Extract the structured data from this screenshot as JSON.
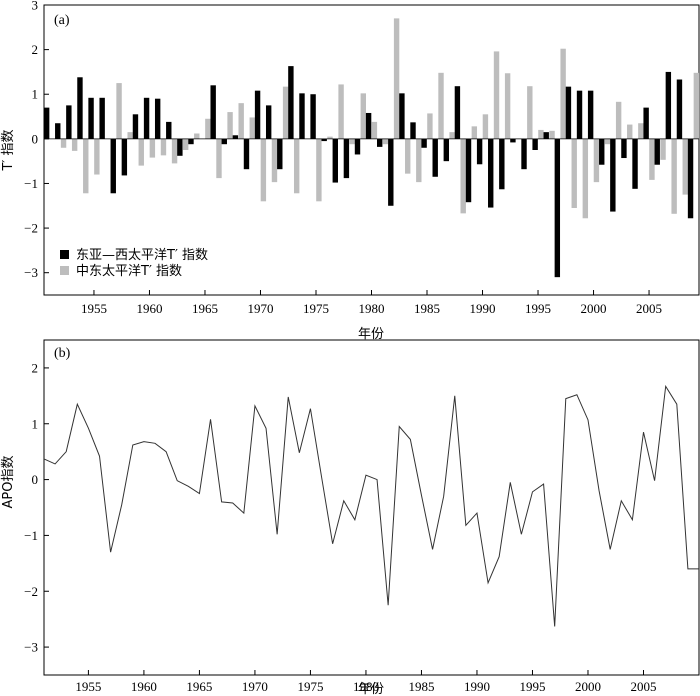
{
  "chart_data": [
    {
      "panel": "(a)",
      "type": "bar",
      "xlabel": "年份",
      "ylabel": "T′ 指数",
      "ylim": [
        -3.5,
        3
      ],
      "yticks": [
        -3,
        -2,
        -1,
        0,
        1,
        2,
        3
      ],
      "xticks": [
        1955,
        1960,
        1965,
        1970,
        1975,
        1980,
        1985,
        1990,
        1995,
        2000,
        2005
      ],
      "xlim": [
        1950.5,
        2009.5
      ],
      "legend_position": "bottom-left",
      "colors": {
        "ea_wp": "#000000",
        "cep": "#bdbdbd"
      },
      "x": [
        1951,
        1952,
        1953,
        1954,
        1955,
        1956,
        1957,
        1958,
        1959,
        1960,
        1961,
        1962,
        1963,
        1964,
        1965,
        1966,
        1967,
        1968,
        1969,
        1970,
        1971,
        1972,
        1973,
        1974,
        1975,
        1976,
        1977,
        1978,
        1979,
        1980,
        1981,
        1982,
        1983,
        1984,
        1985,
        1986,
        1987,
        1988,
        1989,
        1990,
        1991,
        1992,
        1993,
        1994,
        1995,
        1996,
        1997,
        1998,
        1999,
        2000,
        2001,
        2002,
        2003,
        2004,
        2005,
        2006,
        2007,
        2008,
        2009
      ],
      "series": [
        {
          "name": "东亚—西太平洋T′ 指数",
          "values": [
            0.7,
            0.35,
            0.75,
            1.38,
            0.92,
            0.92,
            -1.22,
            -0.82,
            0.55,
            0.92,
            0.9,
            0.38,
            -0.38,
            -0.12,
            0.0,
            1.2,
            -0.12,
            0.08,
            -0.68,
            1.08,
            0.75,
            -0.68,
            1.63,
            1.02,
            1.0,
            -0.05,
            -0.98,
            -0.88,
            -0.35,
            0.58,
            -0.18,
            -1.5,
            1.02,
            0.37,
            -0.2,
            -0.85,
            -0.5,
            1.18,
            -1.42,
            -0.57,
            -1.54,
            -1.13,
            -0.08,
            -0.68,
            -0.25,
            0.15,
            -3.1,
            1.17,
            1.08,
            1.08,
            -0.58,
            -1.63,
            -0.43,
            -1.12,
            0.7,
            -0.58,
            1.5,
            1.33,
            -1.78
          ]
        },
        {
          "name": "中东太平洋T′ 指数",
          "values": [
            0.0,
            -0.2,
            -0.27,
            -1.22,
            -0.8,
            0.0,
            1.25,
            0.15,
            -0.6,
            -0.42,
            -0.37,
            -0.55,
            -0.25,
            0.12,
            0.45,
            -0.88,
            0.6,
            0.8,
            0.48,
            -1.4,
            -0.97,
            1.17,
            -1.22,
            0.0,
            -1.4,
            0.05,
            1.22,
            -0.12,
            1.02,
            0.38,
            -0.12,
            2.7,
            -0.78,
            -0.97,
            0.57,
            1.48,
            0.15,
            -1.67,
            0.28,
            0.55,
            1.96,
            1.47,
            0.0,
            1.18,
            0.2,
            0.18,
            2.02,
            -1.55,
            -1.78,
            -0.97,
            -0.12,
            0.83,
            0.32,
            0.35,
            -0.92,
            -0.47,
            -1.68,
            -1.25,
            1.48
          ]
        }
      ]
    },
    {
      "panel": "(b)",
      "type": "line",
      "xlabel": "年份",
      "ylabel": "APO指数",
      "ylim": [
        -3.5,
        2.5
      ],
      "yticks": [
        -3,
        -2,
        -1,
        0,
        1,
        2
      ],
      "xticks": [
        1955,
        1960,
        1965,
        1970,
        1975,
        1980,
        1985,
        1990,
        1995,
        2000,
        2005
      ],
      "xlim": [
        1951,
        2010
      ],
      "x": [
        1951,
        1952,
        1953,
        1954,
        1955,
        1956,
        1957,
        1958,
        1959,
        1960,
        1961,
        1962,
        1963,
        1964,
        1965,
        1966,
        1967,
        1968,
        1969,
        1970,
        1971,
        1972,
        1973,
        1974,
        1975,
        1976,
        1977,
        1978,
        1979,
        1980,
        1981,
        1982,
        1983,
        1984,
        1985,
        1986,
        1987,
        1988,
        1989,
        1990,
        1991,
        1992,
        1993,
        1994,
        1995,
        1996,
        1997,
        1998,
        1999,
        2000,
        2001,
        2002,
        2003,
        2004,
        2005,
        2006,
        2007,
        2008,
        2009,
        2010
      ],
      "values": [
        0.37,
        0.28,
        0.5,
        1.35,
        0.92,
        0.42,
        -1.3,
        -0.45,
        0.62,
        0.68,
        0.65,
        0.5,
        -0.02,
        -0.12,
        -0.25,
        1.08,
        -0.4,
        -0.42,
        -0.6,
        1.32,
        0.92,
        -0.98,
        1.48,
        0.48,
        1.27,
        0.05,
        -1.15,
        -0.38,
        -0.72,
        0.08,
        0.0,
        -2.25,
        0.95,
        0.72,
        -0.28,
        -1.25,
        -0.3,
        1.5,
        -0.82,
        -0.6,
        -1.85,
        -1.38,
        -0.05,
        -0.98,
        -0.22,
        -0.08,
        -2.63,
        1.45,
        1.52,
        1.07,
        -0.2,
        -1.25,
        -0.38,
        -0.72,
        0.85,
        -0.02,
        1.67,
        1.35,
        -1.6,
        -1.6
      ]
    }
  ]
}
